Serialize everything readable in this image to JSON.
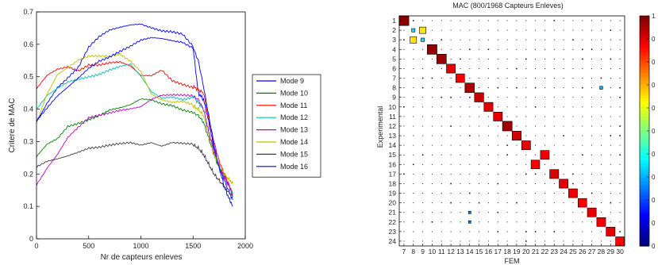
{
  "chart_data": [
    {
      "type": "line",
      "xlabel": "Nr de capteurs enleves",
      "ylabel": "Critere de MAC",
      "xlim": [
        0,
        2000
      ],
      "ylim": [
        0,
        0.7
      ],
      "xticks": [
        "0",
        "500",
        "1000",
        "1500",
        "2000"
      ],
      "yticks": [
        "0",
        "0.1",
        "0.2",
        "0.3",
        "0.4",
        "0.5",
        "0.6",
        "0.7"
      ],
      "legend_position": "right, outside plot",
      "series": [
        {
          "name": "Mode 9",
          "color": "#0000ff",
          "x": [
            0,
            100,
            200,
            300,
            400,
            500,
            600,
            700,
            800,
            900,
            1000,
            1100,
            1200,
            1300,
            1400,
            1500,
            1550,
            1600,
            1650,
            1700,
            1750,
            1800,
            1850,
            1880
          ],
          "y": [
            0.36,
            0.42,
            0.47,
            0.5,
            0.53,
            0.59,
            0.62,
            0.64,
            0.65,
            0.66,
            0.665,
            0.655,
            0.645,
            0.64,
            0.63,
            0.59,
            0.45,
            0.43,
            0.36,
            0.28,
            0.22,
            0.18,
            0.14,
            0.12
          ]
        },
        {
          "name": "Mode 10",
          "color": "#008000",
          "x": [
            0,
            100,
            200,
            300,
            400,
            500,
            600,
            700,
            800,
            900,
            1000,
            1100,
            1200,
            1300,
            1400,
            1500,
            1550,
            1600,
            1650,
            1700,
            1750,
            1800,
            1850,
            1880
          ],
          "y": [
            0.25,
            0.29,
            0.31,
            0.35,
            0.36,
            0.37,
            0.38,
            0.395,
            0.4,
            0.41,
            0.43,
            0.43,
            0.42,
            0.415,
            0.4,
            0.39,
            0.38,
            0.36,
            0.31,
            0.26,
            0.22,
            0.19,
            0.16,
            0.14
          ]
        },
        {
          "name": "Mode 11",
          "color": "#ff0000",
          "x": [
            0,
            100,
            200,
            300,
            400,
            500,
            600,
            700,
            800,
            900,
            1000,
            1100,
            1200,
            1300,
            1400,
            1500,
            1550,
            1600,
            1650,
            1700,
            1750,
            1800,
            1850,
            1880
          ],
          "y": [
            0.46,
            0.5,
            0.52,
            0.53,
            0.52,
            0.54,
            0.54,
            0.545,
            0.545,
            0.53,
            0.5,
            0.5,
            0.52,
            0.49,
            0.48,
            0.47,
            0.46,
            0.45,
            0.37,
            0.3,
            0.24,
            0.2,
            0.16,
            0.14
          ]
        },
        {
          "name": "Mode 12",
          "color": "#00bfbf",
          "x": [
            0,
            100,
            200,
            300,
            400,
            500,
            600,
            700,
            800,
            900,
            1000,
            1100,
            1200,
            1300,
            1400,
            1500,
            1550,
            1600,
            1650,
            1700,
            1750,
            1800,
            1850,
            1880
          ],
          "y": [
            0.4,
            0.44,
            0.46,
            0.48,
            0.49,
            0.5,
            0.51,
            0.525,
            0.535,
            0.54,
            0.5,
            0.45,
            0.43,
            0.435,
            0.43,
            0.44,
            0.42,
            0.4,
            0.33,
            0.27,
            0.22,
            0.19,
            0.16,
            0.14
          ]
        },
        {
          "name": "Mode 13",
          "color": "#bf00bf",
          "x": [
            0,
            100,
            200,
            300,
            400,
            500,
            600,
            700,
            800,
            900,
            1000,
            1100,
            1200,
            1300,
            1400,
            1500,
            1550,
            1600,
            1650,
            1700,
            1750,
            1800,
            1850,
            1880
          ],
          "y": [
            0.17,
            0.22,
            0.26,
            0.31,
            0.34,
            0.37,
            0.38,
            0.39,
            0.4,
            0.405,
            0.41,
            0.43,
            0.44,
            0.44,
            0.44,
            0.44,
            0.43,
            0.4,
            0.33,
            0.27,
            0.22,
            0.19,
            0.16,
            0.13
          ]
        },
        {
          "name": "Mode 14",
          "color": "#bfbf00",
          "x": [
            0,
            100,
            200,
            300,
            400,
            500,
            600,
            700,
            800,
            900,
            1000,
            1100,
            1200,
            1300,
            1400,
            1500,
            1550,
            1600,
            1650,
            1700,
            1750,
            1800,
            1850,
            1880
          ],
          "y": [
            0.36,
            0.45,
            0.51,
            0.53,
            0.55,
            0.56,
            0.56,
            0.56,
            0.57,
            0.55,
            0.52,
            0.45,
            0.43,
            0.42,
            0.42,
            0.41,
            0.4,
            0.38,
            0.32,
            0.26,
            0.23,
            0.2,
            0.18,
            0.17
          ]
        },
        {
          "name": "Mode 15",
          "color": "#404040",
          "x": [
            0,
            100,
            200,
            300,
            400,
            500,
            600,
            700,
            800,
            900,
            1000,
            1100,
            1200,
            1300,
            1400,
            1500,
            1550,
            1600,
            1650,
            1700,
            1750,
            1800,
            1850,
            1880
          ],
          "y": [
            0.22,
            0.24,
            0.25,
            0.26,
            0.27,
            0.28,
            0.28,
            0.285,
            0.29,
            0.295,
            0.29,
            0.3,
            0.29,
            0.3,
            0.295,
            0.29,
            0.28,
            0.26,
            0.23,
            0.2,
            0.18,
            0.16,
            0.14,
            0.13
          ]
        },
        {
          "name": "Mode 16",
          "color": "#0000ff",
          "x": [
            0,
            100,
            200,
            300,
            400,
            500,
            600,
            700,
            800,
            900,
            1000,
            1100,
            1200,
            1300,
            1400,
            1500,
            1550,
            1600,
            1650,
            1700,
            1750,
            1800,
            1850,
            1880
          ],
          "y": [
            0.36,
            0.4,
            0.44,
            0.47,
            0.5,
            0.53,
            0.55,
            0.56,
            0.575,
            0.59,
            0.61,
            0.62,
            0.62,
            0.615,
            0.61,
            0.59,
            0.55,
            0.47,
            0.38,
            0.29,
            0.22,
            0.16,
            0.12,
            0.1
          ]
        }
      ]
    },
    {
      "type": "heatmap",
      "title": "MAC (800/1968 Capteurs Enleves)",
      "xlabel": "FEM",
      "ylabel": "Experimental",
      "x_categories": [
        "7",
        "8",
        "9",
        "10",
        "11",
        "12",
        "13",
        "14",
        "15",
        "16",
        "17",
        "18",
        "19",
        "20",
        "21",
        "22",
        "23",
        "24",
        "25",
        "26",
        "27",
        "28",
        "29",
        "30"
      ],
      "y_categories": [
        "1",
        "2",
        "3",
        "4",
        "5",
        "6",
        "7",
        "8",
        "9",
        "10",
        "11",
        "12",
        "13",
        "14",
        "15",
        "16",
        "17",
        "18",
        "19",
        "20",
        "21",
        "22",
        "23",
        "24"
      ],
      "colormap": "jet",
      "colorbar_ticks": [
        "1",
        "0",
        "0",
        "0",
        "0",
        "0",
        "0",
        "0",
        "0",
        "0",
        "0"
      ],
      "cells": [
        {
          "x": "7",
          "y": "1",
          "v": 0.99
        },
        {
          "x": "8",
          "y": "2",
          "v": 0.35
        },
        {
          "x": "9",
          "y": "2",
          "v": 0.65
        },
        {
          "x": "8",
          "y": "3",
          "v": 0.65
        },
        {
          "x": "9",
          "y": "3",
          "v": 0.35
        },
        {
          "x": "10",
          "y": "4",
          "v": 0.98
        },
        {
          "x": "11",
          "y": "5",
          "v": 0.97
        },
        {
          "x": "12",
          "y": "6",
          "v": 0.9
        },
        {
          "x": "13",
          "y": "7",
          "v": 0.88
        },
        {
          "x": "14",
          "y": "8",
          "v": 0.96
        },
        {
          "x": "28",
          "y": "8",
          "v": 0.3
        },
        {
          "x": "15",
          "y": "9",
          "v": 0.93
        },
        {
          "x": "16",
          "y": "10",
          "v": 0.91
        },
        {
          "x": "17",
          "y": "11",
          "v": 0.9
        },
        {
          "x": "18",
          "y": "12",
          "v": 0.97
        },
        {
          "x": "19",
          "y": "13",
          "v": 0.92
        },
        {
          "x": "20",
          "y": "14",
          "v": 0.9
        },
        {
          "x": "22",
          "y": "15",
          "v": 0.89
        },
        {
          "x": "21",
          "y": "16",
          "v": 0.88
        },
        {
          "x": "23",
          "y": "17",
          "v": 0.91
        },
        {
          "x": "24",
          "y": "18",
          "v": 0.9
        },
        {
          "x": "25",
          "y": "19",
          "v": 0.89
        },
        {
          "x": "26",
          "y": "20",
          "v": 0.88
        },
        {
          "x": "14",
          "y": "21",
          "v": 0.25
        },
        {
          "x": "27",
          "y": "21",
          "v": 0.9
        },
        {
          "x": "14",
          "y": "22",
          "v": 0.25
        },
        {
          "x": "28",
          "y": "22",
          "v": 0.89
        },
        {
          "x": "29",
          "y": "23",
          "v": 0.9
        },
        {
          "x": "30",
          "y": "24",
          "v": 0.88
        }
      ]
    }
  ]
}
